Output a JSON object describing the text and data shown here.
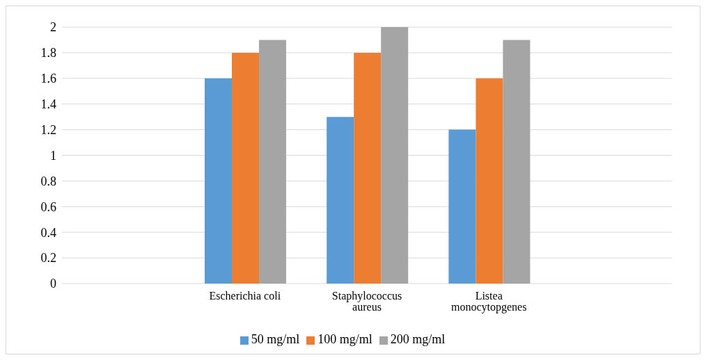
{
  "chart_data": {
    "type": "bar",
    "categories": [
      null,
      "Escherichia coli",
      "Staphylococcus aureus",
      "Listea monocytopgenes",
      null
    ],
    "series": [
      {
        "name": "50 mg/ml",
        "color": "#5b9bd5",
        "values": [
          null,
          1.6,
          1.3,
          1.2,
          null
        ]
      },
      {
        "name": "100 mg/ml",
        "color": "#ed7d31",
        "values": [
          null,
          1.8,
          1.8,
          1.6,
          null
        ]
      },
      {
        "name": "200 mg/ml",
        "color": "#a5a5a5",
        "values": [
          null,
          1.9,
          2.0,
          1.9,
          null
        ]
      }
    ],
    "ylim": [
      0,
      2
    ],
    "yticks": [
      0,
      0.2,
      0.4,
      0.6,
      0.8,
      1,
      1.2,
      1.4,
      1.6,
      1.8,
      2
    ],
    "grid": "y",
    "legend": "bottom"
  }
}
